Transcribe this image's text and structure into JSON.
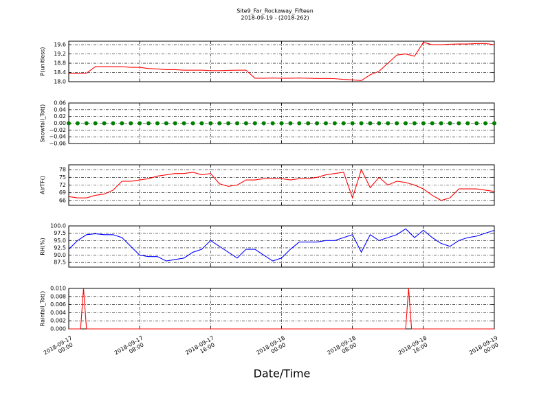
{
  "title": "Site9_Far_Rockaway_Fifteen",
  "subtitle": "2018-09-19 - (2018-262)",
  "xlabel": "Date/Time",
  "chart_data": [
    {
      "type": "line",
      "ylabel": "P(unitless)",
      "color": "#ff0000",
      "grid": true,
      "x": [
        "2018-09-17 00:00",
        "2018-09-17 01:00",
        "2018-09-17 02:00",
        "2018-09-17 03:00",
        "2018-09-17 04:00",
        "2018-09-17 05:00",
        "2018-09-17 06:00",
        "2018-09-17 07:00",
        "2018-09-17 08:00",
        "2018-09-17 09:00",
        "2018-09-17 10:00",
        "2018-09-17 11:00",
        "2018-09-17 12:00",
        "2018-09-17 13:00",
        "2018-09-17 14:00",
        "2018-09-17 15:00",
        "2018-09-17 16:00",
        "2018-09-17 17:00",
        "2018-09-17 18:00",
        "2018-09-17 19:00",
        "2018-09-17 20:00",
        "2018-09-17 21:00",
        "2018-09-17 22:00",
        "2018-09-17 23:00",
        "2018-09-18 00:00",
        "2018-09-18 01:00",
        "2018-09-18 02:00",
        "2018-09-18 03:00",
        "2018-09-18 04:00",
        "2018-09-18 05:00",
        "2018-09-18 06:00",
        "2018-09-18 07:00",
        "2018-09-18 08:00",
        "2018-09-18 09:00",
        "2018-09-18 10:00",
        "2018-09-18 11:00",
        "2018-09-18 12:00",
        "2018-09-18 13:00",
        "2018-09-18 14:00",
        "2018-09-18 15:00",
        "2018-09-18 16:00",
        "2018-09-18 17:00",
        "2018-09-18 18:00",
        "2018-09-18 19:00",
        "2018-09-18 20:00",
        "2018-09-18 21:00",
        "2018-09-18 22:00",
        "2018-09-18 23:00",
        "2018-09-19 00:00"
      ],
      "values": [
        18.35,
        18.35,
        18.37,
        18.65,
        18.65,
        18.65,
        18.65,
        18.62,
        18.62,
        18.57,
        18.55,
        18.52,
        18.52,
        18.5,
        18.5,
        18.5,
        18.48,
        18.48,
        18.49,
        18.5,
        18.5,
        18.15,
        18.15,
        18.16,
        18.15,
        18.15,
        18.16,
        18.15,
        18.14,
        18.14,
        18.13,
        18.1,
        18.08,
        18.05,
        18.3,
        18.45,
        18.8,
        19.15,
        19.2,
        19.1,
        19.7,
        19.6,
        19.6,
        19.62,
        19.63,
        19.63,
        19.65,
        19.65,
        19.6
      ],
      "xlim": [
        "2018-09-17 00:00",
        "2018-09-19 00:00"
      ],
      "ylim": [
        18.0,
        19.75
      ],
      "yticks": [
        {
          "value": 18,
          "label": "18.0"
        },
        18.4,
        18.8,
        19.2,
        19.6
      ]
    },
    {
      "type": "scatter",
      "ylabel": "Snowfall_Tot()",
      "color": "#008000",
      "grid": true,
      "x": [
        "2018-09-17 00:00",
        "2018-09-17 01:00",
        "2018-09-17 02:00",
        "2018-09-17 03:00",
        "2018-09-17 04:00",
        "2018-09-17 05:00",
        "2018-09-17 06:00",
        "2018-09-17 07:00",
        "2018-09-17 08:00",
        "2018-09-17 09:00",
        "2018-09-17 10:00",
        "2018-09-17 11:00",
        "2018-09-17 12:00",
        "2018-09-17 13:00",
        "2018-09-17 14:00",
        "2018-09-17 15:00",
        "2018-09-17 16:00",
        "2018-09-17 17:00",
        "2018-09-17 18:00",
        "2018-09-17 19:00",
        "2018-09-17 20:00",
        "2018-09-17 21:00",
        "2018-09-17 22:00",
        "2018-09-17 23:00",
        "2018-09-18 00:00",
        "2018-09-18 01:00",
        "2018-09-18 02:00",
        "2018-09-18 03:00",
        "2018-09-18 04:00",
        "2018-09-18 05:00",
        "2018-09-18 06:00",
        "2018-09-18 07:00",
        "2018-09-18 08:00",
        "2018-09-18 09:00",
        "2018-09-18 10:00",
        "2018-09-18 11:00",
        "2018-09-18 12:00",
        "2018-09-18 13:00",
        "2018-09-18 14:00",
        "2018-09-18 15:00",
        "2018-09-18 16:00",
        "2018-09-18 17:00",
        "2018-09-18 18:00",
        "2018-09-18 19:00",
        "2018-09-18 20:00",
        "2018-09-18 21:00",
        "2018-09-18 22:00",
        "2018-09-18 23:00",
        "2018-09-19 00:00"
      ],
      "values": [
        0,
        0,
        0,
        0,
        0,
        0,
        0,
        0,
        0,
        0,
        0,
        0,
        0,
        0,
        0,
        0,
        0,
        0,
        0,
        0,
        0,
        0,
        0,
        0,
        0,
        0,
        0,
        0,
        0,
        0,
        0,
        0,
        0,
        0,
        0,
        0,
        0,
        0,
        0,
        0,
        0,
        0,
        0,
        0,
        0,
        0,
        0,
        0,
        0
      ],
      "xlim": [
        "2018-09-17 00:00",
        "2018-09-19 00:00"
      ],
      "ylim": [
        -0.06,
        0.06
      ],
      "yticks": [
        {
          "value": -0.06,
          "label": "−0.06"
        },
        {
          "value": -0.04,
          "label": "−0.04"
        },
        {
          "value": -0.02,
          "label": "−0.02"
        },
        {
          "value": 0,
          "label": "0.00"
        },
        0.02,
        0.04,
        0.06
      ]
    },
    {
      "type": "line",
      "ylabel": "AirTF()",
      "color": "#ff0000",
      "grid": true,
      "x": [
        "2018-09-17 00:00",
        "2018-09-17 01:00",
        "2018-09-17 02:00",
        "2018-09-17 03:00",
        "2018-09-17 04:00",
        "2018-09-17 05:00",
        "2018-09-17 06:00",
        "2018-09-17 07:00",
        "2018-09-17 08:00",
        "2018-09-17 09:00",
        "2018-09-17 10:00",
        "2018-09-17 11:00",
        "2018-09-17 12:00",
        "2018-09-17 13:00",
        "2018-09-17 14:00",
        "2018-09-17 15:00",
        "2018-09-17 16:00",
        "2018-09-17 17:00",
        "2018-09-17 18:00",
        "2018-09-17 19:00",
        "2018-09-17 20:00",
        "2018-09-17 21:00",
        "2018-09-17 22:00",
        "2018-09-17 23:00",
        "2018-09-18 00:00",
        "2018-09-18 01:00",
        "2018-09-18 02:00",
        "2018-09-18 03:00",
        "2018-09-18 04:00",
        "2018-09-18 05:00",
        "2018-09-18 06:00",
        "2018-09-18 07:00",
        "2018-09-18 08:00",
        "2018-09-18 09:00",
        "2018-09-18 10:00",
        "2018-09-18 11:00",
        "2018-09-18 12:00",
        "2018-09-18 13:00",
        "2018-09-18 14:00",
        "2018-09-18 15:00",
        "2018-09-18 16:00",
        "2018-09-18 17:00",
        "2018-09-18 18:00",
        "2018-09-18 19:00",
        "2018-09-18 20:00",
        "2018-09-18 21:00",
        "2018-09-18 22:00",
        "2018-09-18 23:00",
        "2018-09-19 00:00"
      ],
      "values": [
        67.5,
        67,
        67,
        68,
        68.5,
        70,
        73.5,
        73.5,
        74,
        74.5,
        75.5,
        76,
        76.5,
        76.5,
        77,
        76,
        76.5,
        72.5,
        71.5,
        72,
        74,
        74,
        74.5,
        74.5,
        74.5,
        74,
        74.5,
        74.5,
        75,
        76,
        76.5,
        77,
        67,
        78,
        71,
        75,
        72,
        73.5,
        73,
        72,
        70.5,
        68,
        66,
        67,
        70.5,
        70.5,
        70.5,
        70,
        69.5
      ],
      "xlim": [
        "2018-09-17 00:00",
        "2018-09-19 00:00"
      ],
      "ylim": [
        64.1,
        79.9
      ],
      "yticks": [
        66,
        69,
        72,
        75,
        78
      ]
    },
    {
      "type": "line",
      "ylabel": "RH(%)",
      "color": "#0000ff",
      "grid": true,
      "x": [
        "2018-09-17 00:00",
        "2018-09-17 01:00",
        "2018-09-17 02:00",
        "2018-09-17 03:00",
        "2018-09-17 04:00",
        "2018-09-17 05:00",
        "2018-09-17 06:00",
        "2018-09-17 07:00",
        "2018-09-17 08:00",
        "2018-09-17 09:00",
        "2018-09-17 10:00",
        "2018-09-17 11:00",
        "2018-09-17 12:00",
        "2018-09-17 13:00",
        "2018-09-17 14:00",
        "2018-09-17 15:00",
        "2018-09-17 16:00",
        "2018-09-17 17:00",
        "2018-09-17 18:00",
        "2018-09-17 19:00",
        "2018-09-17 20:00",
        "2018-09-17 21:00",
        "2018-09-17 22:00",
        "2018-09-17 23:00",
        "2018-09-18 00:00",
        "2018-09-18 01:00",
        "2018-09-18 02:00",
        "2018-09-18 03:00",
        "2018-09-18 04:00",
        "2018-09-18 05:00",
        "2018-09-18 06:00",
        "2018-09-18 07:00",
        "2018-09-18 08:00",
        "2018-09-18 09:00",
        "2018-09-18 10:00",
        "2018-09-18 11:00",
        "2018-09-18 12:00",
        "2018-09-18 13:00",
        "2018-09-18 14:00",
        "2018-09-18 15:00",
        "2018-09-18 16:00",
        "2018-09-18 17:00",
        "2018-09-18 18:00",
        "2018-09-18 19:00",
        "2018-09-18 20:00",
        "2018-09-18 21:00",
        "2018-09-18 22:00",
        "2018-09-18 23:00",
        "2018-09-19 00:00"
      ],
      "values": [
        92,
        95,
        97,
        97.3,
        97,
        97,
        96,
        93,
        90,
        89.5,
        89.5,
        88,
        88.5,
        89,
        91,
        92,
        95,
        93,
        91,
        89,
        92,
        92,
        90,
        88,
        89,
        92,
        94.5,
        94.5,
        94.5,
        95,
        95,
        96,
        97,
        91,
        97,
        95,
        96,
        97,
        99,
        96,
        98.5,
        96,
        94,
        93,
        95,
        96,
        96.5,
        97.5,
        98.5
      ],
      "xlim": [
        "2018-09-17 00:00",
        "2018-09-19 00:00"
      ],
      "ylim": [
        85.9,
        100
      ],
      "yticks": [
        87.5,
        {
          "value": 90,
          "label": "90.0"
        },
        92.5,
        {
          "value": 95,
          "label": "95.0"
        },
        97.5,
        {
          "value": 100,
          "label": "100.0"
        }
      ]
    },
    {
      "type": "line",
      "ylabel": "Rainfall_Tot()",
      "color": "#ff0000",
      "grid": true,
      "x": [
        "2018-09-17 00:00",
        "2018-09-17 01:20",
        "2018-09-17 01:40",
        "2018-09-17 02:00",
        "2018-09-18 14:00",
        "2018-09-18 14:20",
        "2018-09-18 14:40",
        "2018-09-19 00:00"
      ],
      "values": [
        0,
        0,
        0.01,
        0,
        0,
        0.01,
        0,
        0
      ],
      "xlim": [
        "2018-09-17 00:00",
        "2018-09-19 00:00"
      ],
      "ylim": [
        0,
        0.01
      ],
      "yticks": [
        {
          "value": 0,
          "label": "0.000"
        },
        0.002,
        0.004,
        0.006,
        0.008,
        {
          "value": 0.01,
          "label": "0.010"
        }
      ],
      "xticks": [
        "2018-09-17 00:00",
        "2018-09-17 08:00",
        "2018-09-17 16:00",
        "2018-09-18 00:00",
        "2018-09-18 08:00",
        "2018-09-18 16:00",
        "2018-09-19 00:00"
      ]
    }
  ]
}
